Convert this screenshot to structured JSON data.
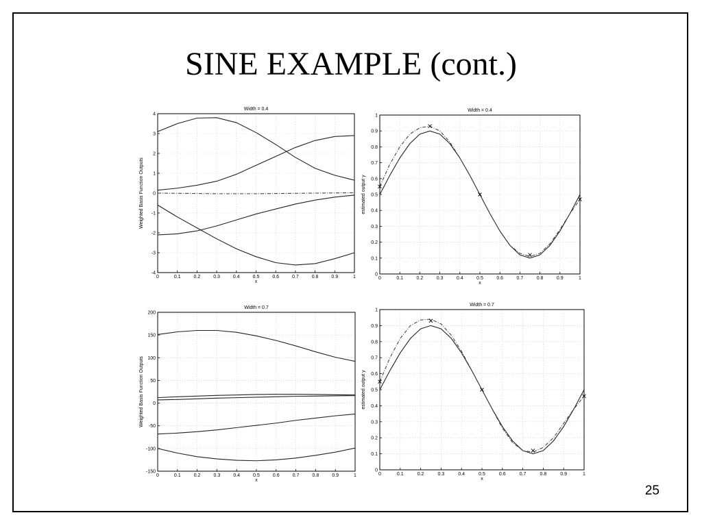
{
  "slide": {
    "title": "SINE EXAMPLE (cont.)",
    "page_number": "25"
  },
  "chart_data": [
    {
      "type": "line",
      "title": "Width = 0.4",
      "xlabel": "x",
      "ylabel": "Weighted Basis Function Outputs",
      "xlim": [
        0,
        1
      ],
      "ylim": [
        -4,
        4
      ],
      "xticks": [
        "0",
        "0.1",
        "0.2",
        "0.3",
        "0.4",
        "0.5",
        "0.6",
        "0.7",
        "0.8",
        "0.9",
        "1"
      ],
      "yticks": [
        "-4",
        "-3",
        "-2",
        "-1",
        "0",
        "1",
        "2",
        "3",
        "4"
      ],
      "grid": true,
      "x": [
        0,
        0.1,
        0.2,
        0.3,
        0.4,
        0.5,
        0.6,
        0.7,
        0.8,
        0.9,
        1
      ],
      "series": [
        {
          "values": [
            3.1,
            3.5,
            3.78,
            3.8,
            3.55,
            3.05,
            2.45,
            1.8,
            1.25,
            0.9,
            0.65
          ],
          "style": "solid"
        },
        {
          "values": [
            0.15,
            0.25,
            0.4,
            0.6,
            0.95,
            1.4,
            1.85,
            2.3,
            2.65,
            2.85,
            2.9
          ],
          "style": "solid"
        },
        {
          "values": [
            0.0,
            -0.01,
            -0.02,
            -0.03,
            -0.03,
            -0.03,
            -0.02,
            -0.01,
            0.0,
            0.01,
            0.02
          ],
          "style": "dashdot"
        },
        {
          "values": [
            -0.6,
            -1.2,
            -1.75,
            -2.3,
            -2.8,
            -3.2,
            -3.5,
            -3.62,
            -3.55,
            -3.3,
            -3.0
          ],
          "style": "solid"
        },
        {
          "values": [
            -2.1,
            -2.05,
            -1.9,
            -1.65,
            -1.35,
            -1.05,
            -0.8,
            -0.55,
            -0.35,
            -0.2,
            -0.1
          ],
          "style": "solid"
        }
      ]
    },
    {
      "type": "line",
      "title": "Width = 0.4",
      "xlabel": "x",
      "ylabel": "estimated output y",
      "xlim": [
        0,
        1
      ],
      "ylim": [
        0,
        1
      ],
      "xticks": [
        "0",
        "0.1",
        "0.2",
        "0.3",
        "0.4",
        "0.5",
        "0.6",
        "0.7",
        "0.8",
        "0.9",
        "1"
      ],
      "yticks": [
        "0",
        "0.1",
        "0.2",
        "0.3",
        "0.4",
        "0.5",
        "0.6",
        "0.7",
        "0.8",
        "0.9",
        "1"
      ],
      "grid": true,
      "x": [
        0,
        0.05,
        0.1,
        0.15,
        0.2,
        0.25,
        0.3,
        0.35,
        0.4,
        0.45,
        0.5,
        0.55,
        0.6,
        0.65,
        0.7,
        0.75,
        0.8,
        0.85,
        0.9,
        0.95,
        1
      ],
      "series": [
        {
          "values": [
            0.5,
            0.62,
            0.73,
            0.82,
            0.88,
            0.9,
            0.88,
            0.82,
            0.73,
            0.62,
            0.5,
            0.38,
            0.27,
            0.18,
            0.12,
            0.1,
            0.12,
            0.18,
            0.27,
            0.38,
            0.5
          ],
          "style": "solid"
        },
        {
          "values": [
            0.55,
            0.69,
            0.8,
            0.88,
            0.92,
            0.93,
            0.9,
            0.83,
            0.73,
            0.62,
            0.5,
            0.38,
            0.27,
            0.18,
            0.13,
            0.11,
            0.13,
            0.19,
            0.28,
            0.38,
            0.47
          ],
          "style": "dashdot"
        }
      ],
      "markers": {
        "x": [
          0,
          0.25,
          0.5,
          0.75,
          1
        ],
        "y": [
          0.55,
          0.93,
          0.5,
          0.12,
          0.47
        ],
        "symbol": "x"
      }
    },
    {
      "type": "line",
      "title": "Width = 0.7",
      "xlabel": "x",
      "ylabel": "Weighted Basis Function Outputs",
      "xlim": [
        0,
        1
      ],
      "ylim": [
        -150,
        200
      ],
      "xticks": [
        "0",
        "0.1",
        "0.2",
        "0.3",
        "0.4",
        "0.5",
        "0.6",
        "0.7",
        "0.8",
        "0.9",
        "1"
      ],
      "yticks": [
        "-150",
        "-100",
        "-50",
        "0",
        "50",
        "100",
        "150",
        "200"
      ],
      "grid": true,
      "x": [
        0,
        0.1,
        0.2,
        0.3,
        0.4,
        0.5,
        0.6,
        0.7,
        0.8,
        0.9,
        1
      ],
      "series": [
        {
          "values": [
            151,
            157,
            160,
            160,
            156,
            148,
            138,
            126,
            113,
            101,
            92
          ],
          "style": "solid"
        },
        {
          "values": [
            12,
            14,
            15.5,
            17,
            18,
            19,
            19.5,
            19.5,
            19,
            18.5,
            18
          ],
          "style": "solid"
        },
        {
          "values": [
            7,
            8,
            9.5,
            11,
            12,
            13,
            14,
            15,
            15.5,
            16,
            16.5
          ],
          "style": "solid"
        },
        {
          "values": [
            -68,
            -66,
            -63,
            -59,
            -54,
            -49,
            -44,
            -38,
            -33,
            -28,
            -24
          ],
          "style": "solid"
        },
        {
          "values": [
            -100,
            -110,
            -118,
            -123,
            -126,
            -127,
            -125,
            -121,
            -115,
            -108,
            -99
          ],
          "style": "solid"
        }
      ]
    },
    {
      "type": "line",
      "title": "Width = 0.7",
      "xlabel": "x",
      "ylabel": "estimated output y",
      "xlim": [
        0,
        1
      ],
      "ylim": [
        0,
        1
      ],
      "xticks": [
        "0",
        "0.1",
        "0.2",
        "0.3",
        "0.4",
        "0.5",
        "0.6",
        "0.7",
        "0.8",
        "0.9",
        "1"
      ],
      "yticks": [
        "0",
        "0.1",
        "0.2",
        "0.3",
        "0.4",
        "0.5",
        "0.6",
        "0.7",
        "0.8",
        "0.9",
        "1"
      ],
      "grid": true,
      "x": [
        0,
        0.05,
        0.1,
        0.15,
        0.2,
        0.25,
        0.3,
        0.35,
        0.4,
        0.45,
        0.5,
        0.55,
        0.6,
        0.65,
        0.7,
        0.75,
        0.8,
        0.85,
        0.9,
        0.95,
        1
      ],
      "series": [
        {
          "values": [
            0.5,
            0.62,
            0.73,
            0.82,
            0.88,
            0.9,
            0.88,
            0.82,
            0.73,
            0.62,
            0.5,
            0.38,
            0.27,
            0.18,
            0.12,
            0.1,
            0.12,
            0.18,
            0.27,
            0.38,
            0.5
          ],
          "style": "solid"
        },
        {
          "values": [
            0.55,
            0.7,
            0.82,
            0.9,
            0.935,
            0.94,
            0.91,
            0.84,
            0.74,
            0.62,
            0.5,
            0.38,
            0.26,
            0.17,
            0.12,
            0.11,
            0.14,
            0.2,
            0.29,
            0.38,
            0.46
          ],
          "style": "dashdot"
        }
      ],
      "markers": {
        "x": [
          0,
          0.25,
          0.5,
          0.75,
          1
        ],
        "y": [
          0.55,
          0.93,
          0.5,
          0.12,
          0.46
        ],
        "symbol": "x"
      }
    }
  ]
}
